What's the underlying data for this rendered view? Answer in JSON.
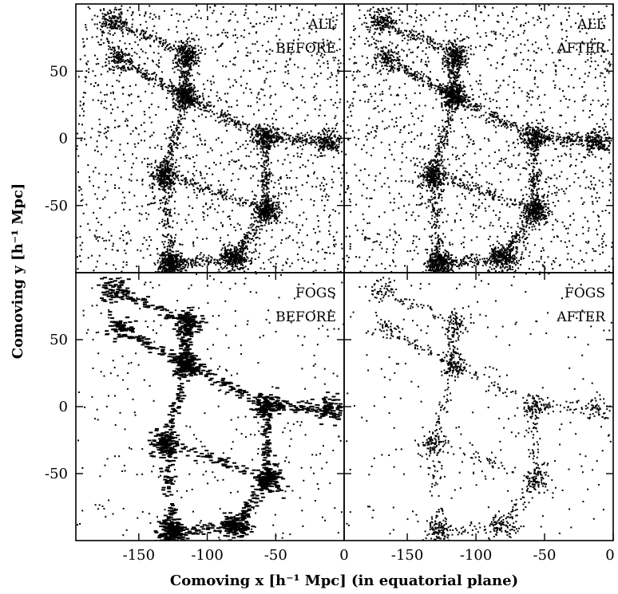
{
  "figure": {
    "xlabel": "Comoving x [h⁻¹ Mpc] (in equatorial plane)",
    "ylabel": "Comoving y [h⁻¹ Mpc]"
  },
  "chart_data": {
    "type": "scatter",
    "layout": "2x2 panels with shared axes",
    "xlim": [
      -196,
      0
    ],
    "ylim": [
      -100,
      100
    ],
    "xticks": [
      -150,
      -100,
      -50,
      0
    ],
    "yticks": [
      50,
      0,
      -50
    ],
    "xtick_labels_left": [
      "-150",
      "-100",
      "-50",
      "0"
    ],
    "xtick_labels_right": [
      "-150",
      "-100",
      "-50",
      "0"
    ],
    "ytick_labels_top": [
      "50",
      "0",
      "-50"
    ],
    "ytick_labels_bottom": [
      "50",
      "0",
      "-50"
    ],
    "xlabel": "Comoving x [h⁻¹ Mpc] (in equatorial plane)",
    "ylabel": "Comoving y [h⁻¹ Mpc]",
    "grid": false,
    "marker_color": "#000000",
    "structures": [
      {
        "x": -127,
        "y": -93,
        "weight": 1.3
      },
      {
        "x": -132,
        "y": -27,
        "weight": 1.0
      },
      {
        "x": -117,
        "y": 32,
        "weight": 1.1
      },
      {
        "x": -115,
        "y": 63,
        "weight": 0.8
      },
      {
        "x": -57,
        "y": -53,
        "weight": 1.0
      },
      {
        "x": -58,
        "y": 2,
        "weight": 0.8
      },
      {
        "x": -80,
        "y": -88,
        "weight": 0.9
      },
      {
        "x": -12,
        "y": -2,
        "weight": 0.6
      },
      {
        "x": -165,
        "y": 60,
        "weight": 0.5
      },
      {
        "x": -170,
        "y": 88,
        "weight": 0.5
      }
    ],
    "panels": [
      {
        "label_line1": "ALL",
        "label_line2": "BEFORE",
        "population": "all",
        "stage": "before"
      },
      {
        "label_line1": "ALL",
        "label_line2": "AFTER",
        "population": "all",
        "stage": "after"
      },
      {
        "label_line1": "FOGS",
        "label_line2": "BEFORE",
        "population": "fogs",
        "stage": "before"
      },
      {
        "label_line1": "FOGS",
        "label_line2": "AFTER",
        "population": "fogs",
        "stage": "after"
      }
    ]
  }
}
